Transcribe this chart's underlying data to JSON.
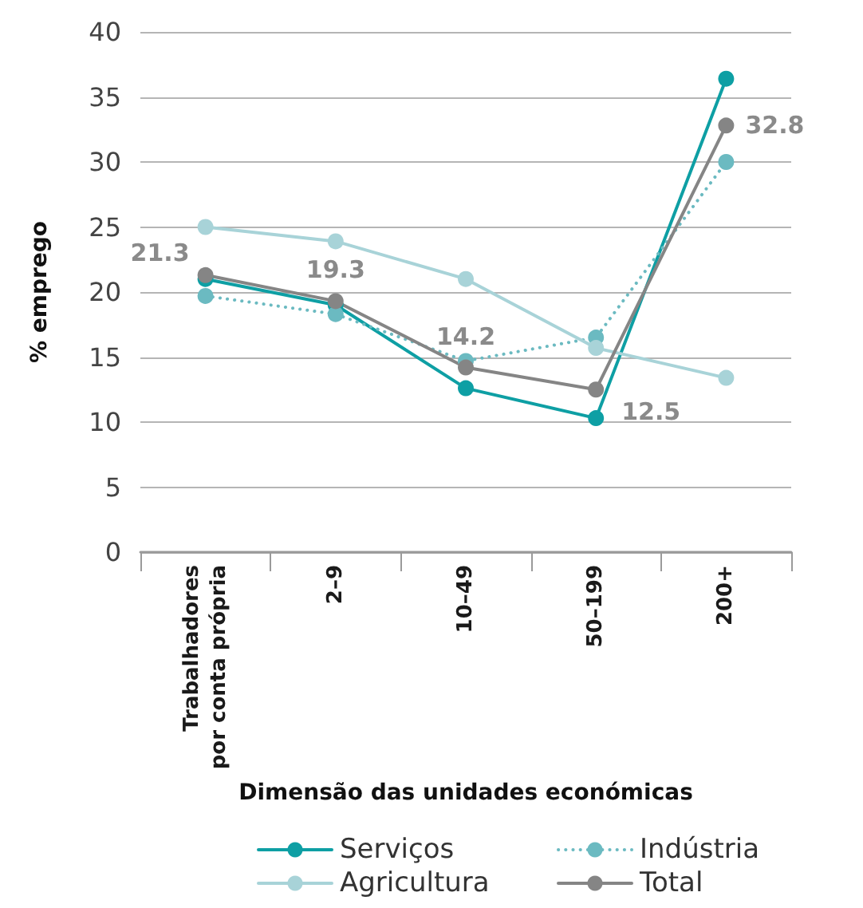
{
  "chart_data": {
    "type": "line",
    "xlabel": "Dimensão das unidades económicas",
    "ylabel": "% emprego",
    "categories": [
      "Trabalhadores por conta própria",
      "2–9",
      "10–49",
      "50–199",
      "200+"
    ],
    "series": [
      {
        "name": "Serviços",
        "color": "#0e9fa4",
        "values": [
          21.0,
          19.0,
          12.6,
          10.3,
          36.4
        ]
      },
      {
        "name": "Indústria",
        "color": "#6bbac1",
        "line_style": "dotted",
        "values": [
          19.7,
          18.3,
          14.7,
          16.5,
          30.0
        ]
      },
      {
        "name": "Agricultura",
        "color": "#a8d3d8",
        "values": [
          25.0,
          23.9,
          21.0,
          15.7,
          13.4
        ]
      },
      {
        "name": "Total",
        "color": "#858585",
        "values": [
          21.3,
          19.3,
          14.2,
          12.5,
          32.8
        ],
        "value_labels": [
          "21.3",
          "19.3",
          "14.2",
          "12.5",
          "32.8"
        ]
      }
    ],
    "ylim": [
      0,
      40
    ],
    "yticks": [
      0,
      5,
      10,
      15,
      20,
      25,
      30,
      35,
      40
    ],
    "grid": "y",
    "legend": "bottom",
    "marker": "circle",
    "line_style": "solid"
  }
}
